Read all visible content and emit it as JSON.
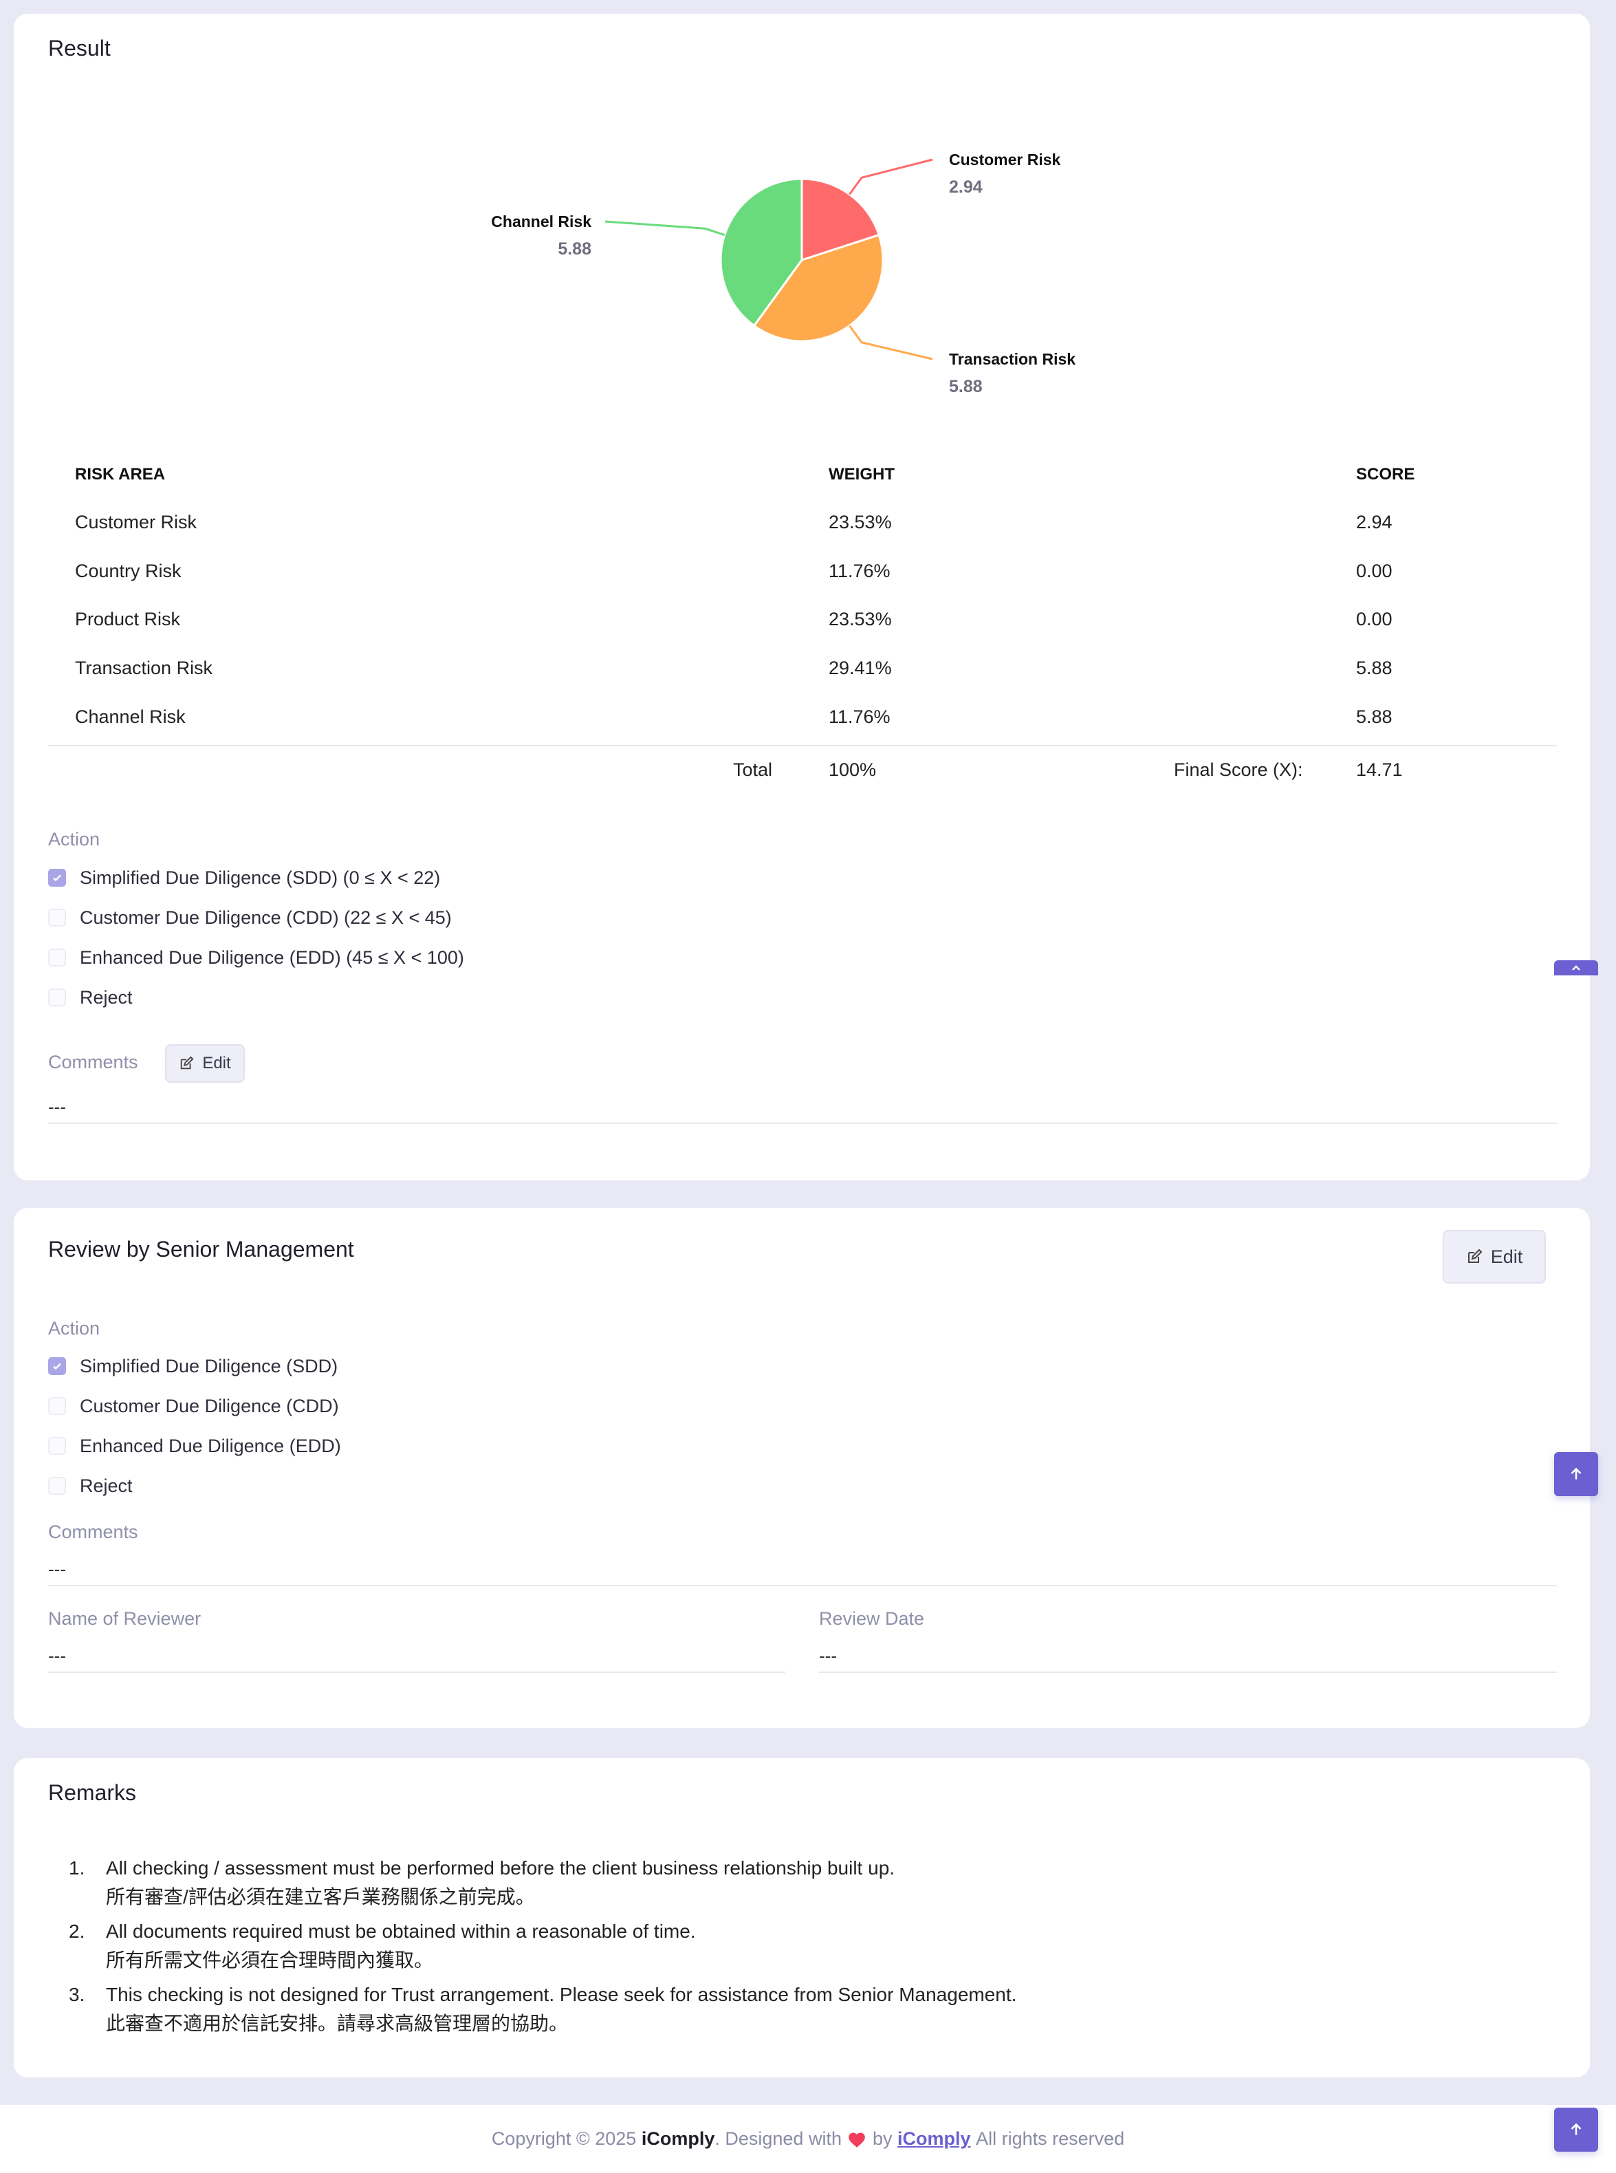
{
  "result": {
    "title": "Result",
    "chart_data": {
      "type": "pie",
      "slices": [
        {
          "label": "Customer Risk",
          "value": 2.94,
          "display": "2.94",
          "color": "#ff6b6b"
        },
        {
          "label": "Transaction Risk",
          "value": 5.88,
          "display": "5.88",
          "color": "#ffa94d"
        },
        {
          "label": "Channel Risk",
          "value": 5.88,
          "display": "5.88",
          "color": "#69db7c"
        }
      ]
    },
    "table": {
      "headers": [
        "RISK AREA",
        "WEIGHT",
        "SCORE"
      ],
      "rows": [
        {
          "area": "Customer Risk",
          "weight": "23.53%",
          "score": "2.94"
        },
        {
          "area": "Country Risk",
          "weight": "11.76%",
          "score": "0.00"
        },
        {
          "area": "Product Risk",
          "weight": "23.53%",
          "score": "0.00"
        },
        {
          "area": "Transaction Risk",
          "weight": "29.41%",
          "score": "5.88"
        },
        {
          "area": "Channel Risk",
          "weight": "11.76%",
          "score": "5.88"
        }
      ],
      "total_label": "Total",
      "total_weight": "100%",
      "final_label": "Final Score (X):",
      "final_value": "14.71"
    },
    "action_label": "Action",
    "actions": [
      {
        "label": "Simplified Due Diligence (SDD) (0 ≤ X < 22)",
        "checked": true
      },
      {
        "label": "Customer Due Diligence (CDD) (22 ≤ X < 45)",
        "checked": false
      },
      {
        "label": "Enhanced Due Diligence (EDD) (45 ≤ X < 100)",
        "checked": false
      },
      {
        "label": "Reject",
        "checked": false
      }
    ],
    "comments_label": "Comments",
    "edit_label": "Edit",
    "comments_value": "---"
  },
  "review": {
    "title": "Review by Senior Management",
    "edit_label": "Edit",
    "action_label": "Action",
    "actions": [
      {
        "label": "Simplified Due Diligence (SDD)",
        "checked": true
      },
      {
        "label": "Customer Due Diligence (CDD)",
        "checked": false
      },
      {
        "label": "Enhanced Due Diligence (EDD)",
        "checked": false
      },
      {
        "label": "Reject",
        "checked": false
      }
    ],
    "comments_label": "Comments",
    "comments_value": "---",
    "reviewer_label": "Name of Reviewer",
    "reviewer_value": "---",
    "date_label": "Review Date",
    "date_value": "---"
  },
  "remarks": {
    "title": "Remarks",
    "items": [
      {
        "en": "All checking / assessment must be performed before the client business relationship built up.",
        "zh": "所有審查/評估必須在建立客戶業務關係之前完成。"
      },
      {
        "en": "All documents required must be obtained within a reasonable of time.",
        "zh": "所有所需文件必須在合理時間內獲取。"
      },
      {
        "en": "This checking is not designed for Trust arrangement. Please seek for assistance from Senior Management.",
        "zh": "此審查不適用於信託安排。請尋求高級管理層的協助。"
      }
    ]
  },
  "footer": {
    "prefix": "Copyright © 2025",
    "brand": "iComply",
    "designed": ". Designed with",
    "by": "by",
    "link": "iComply",
    "suffix": "All rights reserved",
    "heart_color": "#f03e5a"
  }
}
